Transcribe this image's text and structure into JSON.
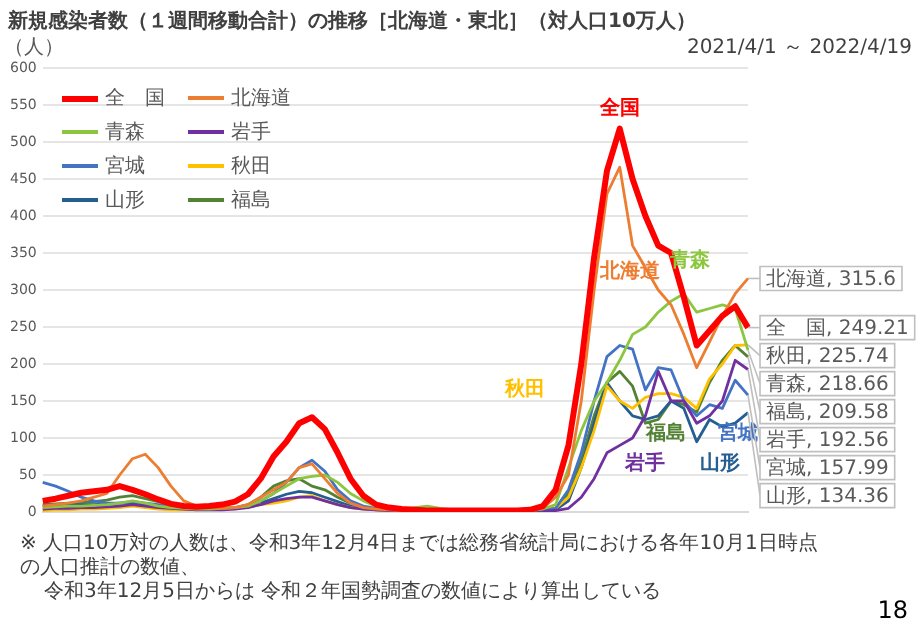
{
  "chart_data": {
    "type": "line",
    "title": "新規感染者数（１週間移動合計）の推移［北海道・東北］（対人口10万人）",
    "subtitle": "2021/4/1 ～ 2022/4/19",
    "ylabel": "（人）",
    "categories": [
      null,
      null,
      null,
      null,
      null,
      null,
      null,
      null,
      null,
      null,
      null,
      null,
      null,
      null,
      null,
      null,
      null,
      null,
      null,
      null,
      null,
      null,
      null,
      null,
      null,
      null,
      null,
      null,
      null,
      null,
      null,
      null,
      null,
      null,
      null,
      null,
      null,
      null,
      null,
      null,
      null,
      null,
      null,
      null,
      null,
      null,
      null,
      null,
      null,
      null,
      null,
      null,
      null,
      null,
      null,
      null
    ],
    "ylim": [
      0,
      600
    ],
    "yticks": [
      0,
      50,
      100,
      150,
      200,
      250,
      300,
      350,
      400,
      450,
      500,
      550,
      600
    ],
    "grid": "y",
    "legend": "top left",
    "marker": "none",
    "line_style": "solid",
    "series": [
      {
        "name": "全　国",
        "color": "#ff0000",
        "values": [
          15,
          18,
          22,
          26,
          28,
          30,
          35,
          30,
          24,
          17,
          11,
          8,
          7,
          8,
          10,
          14,
          24,
          45,
          75,
          95,
          120,
          128,
          112,
          80,
          45,
          22,
          10,
          6,
          4,
          3,
          2,
          2,
          2,
          2,
          2,
          2,
          2,
          2,
          3,
          8,
          30,
          90,
          200,
          344,
          461,
          518,
          450,
          400,
          360,
          350,
          290,
          225,
          245,
          265,
          278,
          249.21
        ],
        "value_labels": [
          null,
          null,
          null,
          null,
          null,
          null,
          null,
          null,
          null,
          null,
          null,
          null,
          null,
          null,
          null,
          null,
          null,
          null,
          null,
          null,
          null,
          null,
          null,
          null,
          null,
          null,
          null,
          null,
          null,
          null,
          null,
          null,
          null,
          null,
          null,
          null,
          null,
          null,
          null,
          null,
          null,
          null,
          null,
          null,
          null,
          null,
          null,
          null,
          null,
          null,
          null,
          null,
          null,
          null,
          null,
          "全　国, 249.21"
        ]
      },
      {
        "name": "北海道",
        "color": "#ed7d31",
        "values": [
          8,
          10,
          12,
          15,
          20,
          25,
          50,
          72,
          78,
          60,
          35,
          15,
          8,
          6,
          5,
          6,
          10,
          20,
          30,
          40,
          60,
          65,
          45,
          25,
          12,
          6,
          4,
          3,
          2,
          2,
          2,
          2,
          2,
          2,
          2,
          2,
          2,
          2,
          3,
          5,
          20,
          50,
          150,
          300,
          430,
          466,
          360,
          330,
          300,
          280,
          240,
          195,
          230,
          265,
          295,
          315.6
        ],
        "value_labels": [
          null,
          null,
          null,
          null,
          null,
          null,
          null,
          null,
          null,
          null,
          null,
          null,
          null,
          null,
          null,
          null,
          null,
          null,
          null,
          null,
          null,
          null,
          null,
          null,
          null,
          null,
          null,
          null,
          null,
          null,
          null,
          null,
          null,
          null,
          null,
          null,
          null,
          null,
          null,
          null,
          null,
          null,
          null,
          null,
          null,
          null,
          null,
          null,
          null,
          null,
          null,
          null,
          null,
          null,
          null,
          "北海道, 315.6"
        ]
      },
      {
        "name": "青森",
        "color": "#8cc63f",
        "values": [
          6,
          7,
          8,
          8,
          9,
          10,
          12,
          15,
          12,
          8,
          6,
          5,
          4,
          4,
          5,
          6,
          8,
          15,
          25,
          35,
          45,
          48,
          50,
          40,
          25,
          15,
          8,
          5,
          4,
          6,
          8,
          5,
          3,
          2,
          2,
          2,
          2,
          2,
          2,
          4,
          10,
          60,
          110,
          150,
          175,
          205,
          240,
          250,
          270,
          285,
          295,
          270,
          275,
          280,
          275,
          218.66
        ],
        "value_labels": [
          null,
          null,
          null,
          null,
          null,
          null,
          null,
          null,
          null,
          null,
          null,
          null,
          null,
          null,
          null,
          null,
          null,
          null,
          null,
          null,
          null,
          null,
          null,
          null,
          null,
          null,
          null,
          null,
          null,
          null,
          null,
          null,
          null,
          null,
          null,
          null,
          null,
          null,
          null,
          null,
          null,
          null,
          null,
          null,
          null,
          null,
          null,
          null,
          null,
          null,
          null,
          null,
          null,
          null,
          null,
          "青森, 218.66"
        ]
      },
      {
        "name": "岩手",
        "color": "#7030a0",
        "values": [
          4,
          5,
          5,
          6,
          6,
          7,
          8,
          10,
          8,
          6,
          5,
          4,
          3,
          3,
          3,
          4,
          6,
          10,
          15,
          18,
          20,
          20,
          15,
          10,
          6,
          4,
          3,
          2,
          2,
          2,
          2,
          2,
          2,
          2,
          1,
          1,
          1,
          1,
          1,
          1,
          2,
          5,
          20,
          45,
          80,
          90,
          100,
          130,
          190,
          150,
          150,
          120,
          130,
          150,
          205,
          192.56
        ],
        "value_labels": [
          null,
          null,
          null,
          null,
          null,
          null,
          null,
          null,
          null,
          null,
          null,
          null,
          null,
          null,
          null,
          null,
          null,
          null,
          null,
          null,
          null,
          null,
          null,
          null,
          null,
          null,
          null,
          null,
          null,
          null,
          null,
          null,
          null,
          null,
          null,
          null,
          null,
          null,
          null,
          null,
          null,
          null,
          null,
          null,
          null,
          null,
          null,
          null,
          null,
          null,
          null,
          null,
          null,
          null,
          null,
          "岩手, 192.56"
        ]
      },
      {
        "name": "宮城",
        "color": "#4472c4",
        "values": [
          40,
          35,
          28,
          20,
          15,
          12,
          12,
          14,
          12,
          10,
          8,
          6,
          5,
          5,
          5,
          6,
          8,
          15,
          25,
          40,
          60,
          70,
          55,
          30,
          15,
          8,
          5,
          3,
          2,
          2,
          2,
          2,
          2,
          2,
          2,
          2,
          2,
          2,
          2,
          3,
          5,
          30,
          80,
          150,
          210,
          225,
          220,
          165,
          195,
          192,
          150,
          130,
          145,
          140,
          178,
          157.99
        ],
        "value_labels": [
          null,
          null,
          null,
          null,
          null,
          null,
          null,
          null,
          null,
          null,
          null,
          null,
          null,
          null,
          null,
          null,
          null,
          null,
          null,
          null,
          null,
          null,
          null,
          null,
          null,
          null,
          null,
          null,
          null,
          null,
          null,
          null,
          null,
          null,
          null,
          null,
          null,
          null,
          null,
          null,
          null,
          null,
          null,
          null,
          null,
          null,
          null,
          null,
          null,
          null,
          null,
          null,
          null,
          null,
          null,
          "宮城, 157.99"
        ]
      },
      {
        "name": "秋田",
        "color": "#ffc000",
        "values": [
          2,
          3,
          3,
          4,
          4,
          5,
          6,
          8,
          6,
          4,
          3,
          3,
          3,
          4,
          5,
          6,
          8,
          10,
          12,
          15,
          20,
          22,
          15,
          10,
          6,
          4,
          3,
          2,
          2,
          2,
          2,
          2,
          2,
          2,
          2,
          2,
          2,
          2,
          2,
          3,
          5,
          20,
          60,
          110,
          170,
          150,
          140,
          155,
          160,
          160,
          155,
          140,
          180,
          200,
          225,
          225.74
        ],
        "value_labels": [
          null,
          null,
          null,
          null,
          null,
          null,
          null,
          null,
          null,
          null,
          null,
          null,
          null,
          null,
          null,
          null,
          null,
          null,
          null,
          null,
          null,
          null,
          null,
          null,
          null,
          null,
          null,
          null,
          null,
          null,
          null,
          null,
          null,
          null,
          null,
          null,
          null,
          null,
          null,
          null,
          null,
          null,
          null,
          null,
          null,
          null,
          null,
          null,
          null,
          null,
          null,
          null,
          null,
          null,
          null,
          "秋田, 225.74"
        ]
      },
      {
        "name": "山形",
        "color": "#255e91",
        "values": [
          8,
          9,
          10,
          10,
          10,
          11,
          12,
          12,
          10,
          8,
          6,
          5,
          4,
          4,
          4,
          5,
          7,
          12,
          18,
          24,
          28,
          26,
          20,
          14,
          8,
          5,
          3,
          2,
          2,
          2,
          2,
          2,
          2,
          2,
          2,
          2,
          2,
          2,
          2,
          3,
          3,
          15,
          60,
          120,
          175,
          150,
          130,
          125,
          130,
          150,
          140,
          95,
          125,
          115,
          120,
          134.36
        ],
        "value_labels": [
          null,
          null,
          null,
          null,
          null,
          null,
          null,
          null,
          null,
          null,
          null,
          null,
          null,
          null,
          null,
          null,
          null,
          null,
          null,
          null,
          null,
          null,
          null,
          null,
          null,
          null,
          null,
          null,
          null,
          null,
          null,
          null,
          null,
          null,
          null,
          null,
          null,
          null,
          null,
          null,
          null,
          null,
          null,
          null,
          null,
          null,
          null,
          null,
          null,
          null,
          null,
          null,
          null,
          null,
          null,
          "山形, 134.36"
        ]
      },
      {
        "name": "福島",
        "color": "#548235",
        "values": [
          10,
          11,
          12,
          13,
          14,
          16,
          20,
          22,
          18,
          14,
          10,
          7,
          5,
          5,
          5,
          6,
          10,
          20,
          35,
          42,
          45,
          35,
          30,
          20,
          12,
          7,
          4,
          3,
          2,
          2,
          2,
          2,
          2,
          2,
          2,
          2,
          2,
          2,
          2,
          4,
          5,
          25,
          70,
          130,
          175,
          190,
          170,
          120,
          125,
          150,
          145,
          135,
          175,
          205,
          225,
          209.58
        ],
        "value_labels": [
          null,
          null,
          null,
          null,
          null,
          null,
          null,
          null,
          null,
          null,
          null,
          null,
          null,
          null,
          null,
          null,
          null,
          null,
          null,
          null,
          null,
          null,
          null,
          null,
          null,
          null,
          null,
          null,
          null,
          null,
          null,
          null,
          null,
          null,
          null,
          null,
          null,
          null,
          null,
          null,
          null,
          null,
          null,
          null,
          null,
          null,
          null,
          null,
          null,
          null,
          null,
          null,
          null,
          null,
          null,
          "福島, 209.58"
        ]
      }
    ],
    "annotations": [
      "全国",
      "北海道",
      "青森",
      "岩手",
      "宮城",
      "秋田",
      "山形",
      "福島",
      "※ 人口10万対の人数は、令和3年12月4日までは総務省統計局における各年10月1日時点の人口推計の数値、",
      "令和3年12月5日からは 令和２年国勢調査の数値により算出している",
      "18"
    ]
  }
}
